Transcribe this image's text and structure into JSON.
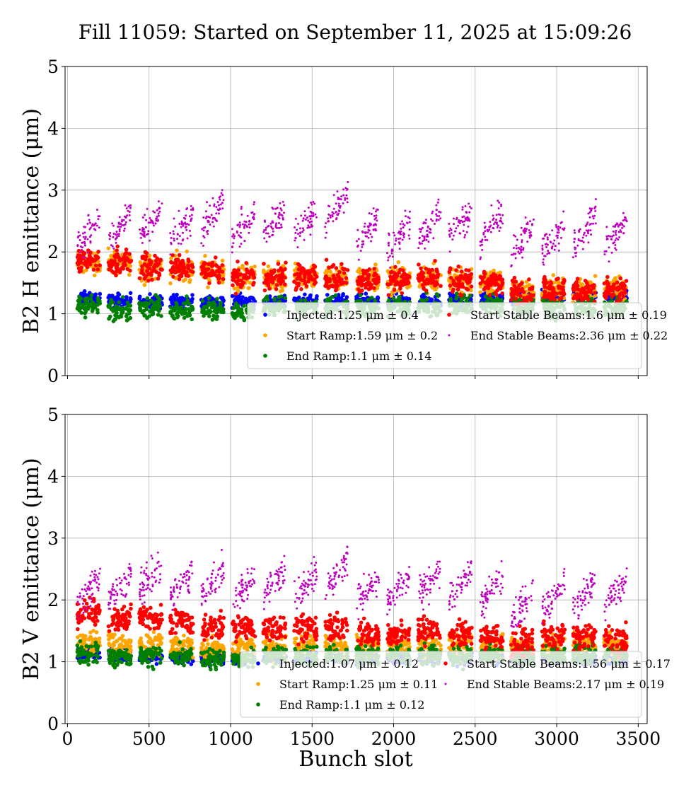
{
  "chart_data": {
    "title": "Fill 11059: Started on September 11, 2025 at 15:09:26",
    "xlabel": "Bunch slot",
    "xlim": [
      -15,
      3555
    ],
    "xticks": [
      0,
      500,
      1000,
      1500,
      2000,
      2500,
      3000,
      3500
    ],
    "colors": {
      "Injected": "#0000ff",
      "Start Ramp": "#ffa500",
      "End Ramp": "#008000",
      "Start Stable Beams": "#ff0000",
      "End Stable Beams": "#bf00bf"
    },
    "trains_bunch_slot": [
      [
        60,
        200
      ],
      [
        250,
        390
      ],
      [
        440,
        580
      ],
      [
        630,
        770
      ],
      [
        820,
        960
      ],
      [
        1010,
        1150
      ],
      [
        1200,
        1340
      ],
      [
        1390,
        1530
      ],
      [
        1580,
        1720
      ],
      [
        1770,
        1910
      ],
      [
        1960,
        2100
      ],
      [
        2150,
        2290
      ],
      [
        2340,
        2480
      ],
      [
        2530,
        2670
      ],
      [
        2720,
        2860
      ],
      [
        2910,
        3050
      ],
      [
        3100,
        3240
      ],
      [
        3290,
        3430
      ]
    ],
    "panels": [
      {
        "type": "scatter",
        "ylabel": "B2 H emittance (μm)",
        "ylim": [
          0,
          5
        ],
        "yticks": [
          0,
          1,
          2,
          3,
          4,
          5
        ],
        "grid": true,
        "legend_placement": "lower-right",
        "series": [
          {
            "name": "Injected",
            "legend": "Injected:1.25 μm ± 0.4",
            "train_means": [
              1.25,
              1.22,
              1.2,
              1.2,
              1.2,
              1.2,
              1.2,
              1.2,
              1.2,
              1.2,
              1.2,
              1.2,
              1.2,
              1.25,
              1.25,
              1.3,
              1.3,
              1.3
            ]
          },
          {
            "name": "Start Ramp",
            "legend": "Start Ramp:1.59 μm ± 0.2",
            "train_means": [
              1.83,
              1.83,
              1.73,
              1.73,
              1.68,
              1.6,
              1.6,
              1.62,
              1.56,
              1.55,
              1.55,
              1.53,
              1.55,
              1.5,
              1.35,
              1.4,
              1.38,
              1.4
            ]
          },
          {
            "name": "End Ramp",
            "legend": "End Ramp:1.1 μm ± 0.14",
            "train_means": [
              1.15,
              1.05,
              1.1,
              1.05,
              1.08,
              1.05,
              1.1,
              1.1,
              1.1,
              1.1,
              1.1,
              1.1,
              1.15,
              1.15,
              1.1,
              1.1,
              1.1,
              1.1
            ]
          },
          {
            "name": "Start Stable Beams",
            "legend": "Start Stable Beams:1.6 μm ± 0.19",
            "train_means": [
              1.85,
              1.85,
              1.75,
              1.75,
              1.7,
              1.6,
              1.6,
              1.62,
              1.58,
              1.55,
              1.55,
              1.55,
              1.55,
              1.5,
              1.35,
              1.4,
              1.35,
              1.4
            ]
          },
          {
            "name": "End Stable Beams",
            "legend": "End Stable Beams:2.36 μm ± 0.22",
            "train_means": [
              2.3,
              2.4,
              2.5,
              2.4,
              2.6,
              2.4,
              2.5,
              2.5,
              2.7,
              2.35,
              2.25,
              2.4,
              2.45,
              2.4,
              2.2,
              2.2,
              2.35,
              2.3
            ]
          }
        ]
      },
      {
        "type": "scatter",
        "ylabel": "B2 V emittance (μm)",
        "ylim": [
          0,
          5
        ],
        "yticks": [
          0,
          1,
          2,
          3,
          4,
          5
        ],
        "grid": true,
        "legend_placement": "lower-right",
        "series": [
          {
            "name": "Injected",
            "legend": "Injected:1.07 μm ± 0.12",
            "train_means": [
              1.12,
              1.1,
              1.08,
              1.08,
              1.05,
              1.05,
              1.07,
              1.07,
              1.07,
              1.07,
              1.07,
              1.07,
              1.07,
              1.07,
              1.05,
              1.05,
              1.05,
              1.05
            ]
          },
          {
            "name": "Start Ramp",
            "legend": "Start Ramp:1.25 μm ± 0.11",
            "train_means": [
              1.3,
              1.28,
              1.27,
              1.25,
              1.22,
              1.22,
              1.25,
              1.25,
              1.25,
              1.25,
              1.25,
              1.25,
              1.25,
              1.25,
              1.22,
              1.25,
              1.28,
              1.25
            ]
          },
          {
            "name": "End Ramp",
            "legend": "End Ramp:1.1 μm ± 0.12",
            "train_means": [
              1.12,
              1.08,
              1.1,
              1.1,
              1.05,
              1.05,
              1.1,
              1.1,
              1.1,
              1.1,
              1.1,
              1.12,
              1.12,
              1.1,
              1.08,
              1.1,
              1.1,
              1.1
            ]
          },
          {
            "name": "Start Stable Beams",
            "legend": "Start Stable Beams:1.56 μm ± 0.17",
            "train_means": [
              1.8,
              1.7,
              1.7,
              1.65,
              1.55,
              1.55,
              1.55,
              1.55,
              1.55,
              1.45,
              1.45,
              1.5,
              1.45,
              1.4,
              1.3,
              1.4,
              1.4,
              1.35
            ]
          },
          {
            "name": "End Stable Beams",
            "legend": "End Stable Beams:2.17 μm ± 0.19",
            "train_means": [
              2.15,
              2.2,
              2.35,
              2.25,
              2.3,
              2.2,
              2.3,
              2.25,
              2.4,
              2.2,
              2.2,
              2.3,
              2.25,
              2.15,
              1.95,
              2.05,
              2.1,
              2.1
            ]
          }
        ]
      }
    ]
  }
}
